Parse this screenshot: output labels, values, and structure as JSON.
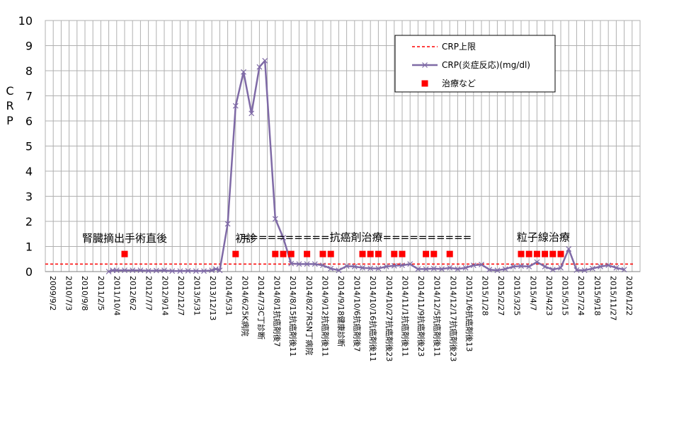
{
  "chart_data": {
    "type": "line",
    "ylabel": "CRP",
    "ylim": [
      0,
      10
    ],
    "yticks": [
      "0",
      "1",
      "2",
      "3",
      "4",
      "5",
      "6",
      "7",
      "8",
      "9",
      "10"
    ],
    "grid": true,
    "legend_position": "top-right",
    "colors": {
      "crp_limit": "#ff0000",
      "crp": "#7f6aa6",
      "treatment": "#ff0000",
      "grid": "#b0b0b0"
    },
    "x_tick_labels": [
      "2009/9/2",
      "2010/7/3",
      "2010/9/8",
      "2011/2/5",
      "2011/10/4",
      "2012/6/2",
      "2012/7/7",
      "2012/9/14",
      "2012/12/7",
      "2013/5/31",
      "2013/12/13",
      "2014/5/31",
      "2014/6/25K病院",
      "2014/7/3C丁診断",
      "2014/8/1抗癌剤後7",
      "2014/8/15抗癌剤後11",
      "2014/8/27RSN丁病院",
      "2014/9/12抗癌剤後11",
      "2014/9/18健康診断",
      "2014/10/6抗癌剤後7",
      "2014/10/16抗癌剤後11",
      "2014/10/27抗癌剤後23",
      "2014/11/1抗癌剤後11",
      "2014/11/9抗癌剤後23",
      "2014/12/5抗癌剤後11",
      "2014/12/17抗癌剤後23",
      "2015/1/6抗癌剤後13",
      "2015/1/28",
      "2015/2/27",
      "2015/3/25",
      "2015/4/7",
      "2015/4/23",
      "2015/5/15",
      "2015/7/24",
      "2015/9/18",
      "2015/11/27",
      "2016/1/22"
    ],
    "series": [
      {
        "name": "CRP上限",
        "style": "dashed",
        "value": 0.3
      },
      {
        "name": "CRP(炎症反応)(mg/dl)",
        "style": "line-x",
        "points": [
          [
            8,
            0
          ],
          [
            8.5,
            0.05
          ],
          [
            9,
            0.05
          ],
          [
            10,
            0.05
          ],
          [
            11,
            0.05
          ],
          [
            12,
            0.05
          ],
          [
            13,
            0.03
          ],
          [
            14,
            0.04
          ],
          [
            15,
            0.05
          ],
          [
            16,
            0.02
          ],
          [
            17,
            0.02
          ],
          [
            18,
            0.03
          ],
          [
            19,
            0.02
          ],
          [
            20,
            0.02
          ],
          [
            21,
            0.05
          ],
          [
            21.5,
            0.1
          ],
          [
            22,
            0.05
          ],
          [
            23,
            1.9
          ],
          [
            24,
            6.6
          ],
          [
            25,
            7.95
          ],
          [
            26,
            6.3
          ],
          [
            27,
            8.15
          ],
          [
            27.7,
            8.4
          ],
          [
            29,
            2.1
          ],
          [
            30,
            1.35
          ],
          [
            31,
            0.32
          ],
          [
            32,
            0.3
          ],
          [
            33,
            0.3
          ],
          [
            34,
            0.3
          ],
          [
            35,
            0.25
          ],
          [
            36,
            0.12
          ],
          [
            37,
            0.05
          ],
          [
            38,
            0.22
          ],
          [
            39,
            0.2
          ],
          [
            40,
            0.15
          ],
          [
            41,
            0.13
          ],
          [
            42,
            0.12
          ],
          [
            43,
            0.2
          ],
          [
            44,
            0.23
          ],
          [
            45,
            0.25
          ],
          [
            46,
            0.3
          ],
          [
            47,
            0.1
          ],
          [
            48,
            0.1
          ],
          [
            49,
            0.12
          ],
          [
            50,
            0.1
          ],
          [
            51,
            0.15
          ],
          [
            52,
            0.1
          ],
          [
            53,
            0.15
          ],
          [
            54,
            0.25
          ],
          [
            55,
            0.28
          ],
          [
            56,
            0.08
          ],
          [
            57,
            0.05
          ],
          [
            58,
            0.1
          ],
          [
            59,
            0.2
          ],
          [
            60,
            0.22
          ],
          [
            61,
            0.2
          ],
          [
            62,
            0.38
          ],
          [
            63,
            0.2
          ],
          [
            64,
            0.08
          ],
          [
            65,
            0.15
          ],
          [
            66,
            0.9
          ],
          [
            67,
            0.06
          ],
          [
            68,
            0.05
          ],
          [
            69,
            0.12
          ],
          [
            70,
            0.2
          ],
          [
            71,
            0.25
          ],
          [
            72,
            0.15
          ],
          [
            73,
            0.08
          ]
        ]
      },
      {
        "name": "治療など",
        "style": "marker",
        "points": [
          [
            10,
            0.7
          ],
          [
            24,
            0.7
          ],
          [
            29,
            0.7
          ],
          [
            30,
            0.7
          ],
          [
            31,
            0.7
          ],
          [
            33,
            0.7
          ],
          [
            35,
            0.7
          ],
          [
            36,
            0.7
          ],
          [
            40,
            0.7
          ],
          [
            41,
            0.7
          ],
          [
            42,
            0.7
          ],
          [
            44,
            0.7
          ],
          [
            45,
            0.7
          ],
          [
            48,
            0.7
          ],
          [
            49,
            0.7
          ],
          [
            51,
            0.7
          ],
          [
            60,
            0.7
          ],
          [
            61,
            0.7
          ],
          [
            62,
            0.7
          ],
          [
            63,
            0.7
          ],
          [
            64,
            0.7
          ],
          [
            65,
            0.7
          ]
        ]
      }
    ],
    "xlim": [
      0,
      75
    ],
    "annotations": [
      {
        "text": "腎臓摘出手術直後",
        "x": 10.0,
        "y": 1.35
      },
      {
        "text": "初診",
        "x": 25.3,
        "y": 1.35
      },
      {
        "text": "==========抗癌剤治療==========",
        "x": 39.2,
        "y": 1.4
      },
      {
        "text": "粒子線治療",
        "x": 62.8,
        "y": 1.4
      }
    ]
  }
}
